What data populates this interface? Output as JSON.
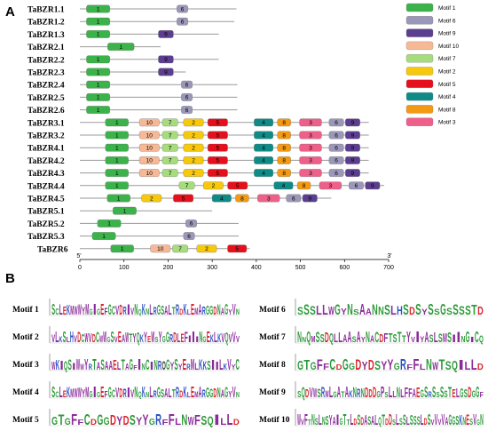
{
  "panel_labels": {
    "a": "A",
    "b": "B"
  },
  "axis": {
    "min": 0,
    "max": 700,
    "ticks": [
      0,
      100,
      200,
      300,
      400,
      500,
      600,
      700
    ],
    "end_left": "5'",
    "end_right": "3'"
  },
  "motif_colors": {
    "1": "#3bb34a",
    "2": "#f7c80c",
    "3": "#ee5f8a",
    "4": "#0e8b86",
    "5": "#e5101c",
    "6": "#9b97b8",
    "7": "#a6dc7c",
    "8": "#f49a12",
    "9": "#5b3e8f",
    "10": "#f7b995"
  },
  "legend": [
    {
      "motif": "1",
      "label": "Motif 1"
    },
    {
      "motif": "6",
      "label": "Motif 6"
    },
    {
      "motif": "9",
      "label": "Motif 9"
    },
    {
      "motif": "10",
      "label": "Motif 10"
    },
    {
      "motif": "7",
      "label": "Motif 7"
    },
    {
      "motif": "2",
      "label": "Motif 2"
    },
    {
      "motif": "5",
      "label": "Motif 5"
    },
    {
      "motif": "4",
      "label": "Motif 4"
    },
    {
      "motif": "8",
      "label": "Motif 8"
    },
    {
      "motif": "3",
      "label": "Motif 3"
    }
  ],
  "genes": [
    {
      "name": "TaBZR1.1",
      "length": 355,
      "motifs": [
        {
          "m": "1",
          "s": 15,
          "e": 68
        },
        {
          "m": "6",
          "s": 220,
          "e": 245
        }
      ]
    },
    {
      "name": "TaBZR1.2",
      "length": 350,
      "motifs": [
        {
          "m": "1",
          "s": 15,
          "e": 68
        },
        {
          "m": "6",
          "s": 220,
          "e": 245
        }
      ]
    },
    {
      "name": "TaBZR1.3",
      "length": 315,
      "motifs": [
        {
          "m": "1",
          "s": 15,
          "e": 68
        },
        {
          "m": "9",
          "s": 178,
          "e": 212
        }
      ]
    },
    {
      "name": "TaBZR2.1",
      "length": 183,
      "motifs": [
        {
          "m": "1",
          "s": 63,
          "e": 123
        }
      ]
    },
    {
      "name": "TaBZR2.2",
      "length": 315,
      "motifs": [
        {
          "m": "1",
          "s": 15,
          "e": 68
        },
        {
          "m": "9",
          "s": 178,
          "e": 212
        }
      ]
    },
    {
      "name": "TaBZR2.3",
      "length": 240,
      "motifs": [
        {
          "m": "1",
          "s": 15,
          "e": 68
        },
        {
          "m": "9",
          "s": 178,
          "e": 212
        }
      ]
    },
    {
      "name": "TaBZR2.4",
      "length": 357,
      "motifs": [
        {
          "m": "1",
          "s": 15,
          "e": 68
        },
        {
          "m": "6",
          "s": 230,
          "e": 255
        }
      ]
    },
    {
      "name": "TaBZR2.5",
      "length": 357,
      "motifs": [
        {
          "m": "1",
          "s": 15,
          "e": 68
        },
        {
          "m": "6",
          "s": 230,
          "e": 255
        }
      ]
    },
    {
      "name": "TaBZR2.6",
      "length": 357,
      "motifs": [
        {
          "m": "1",
          "s": 15,
          "e": 68
        },
        {
          "m": "6",
          "s": 230,
          "e": 255
        }
      ]
    },
    {
      "name": "TaBZR3.1",
      "length": 655,
      "motifs": [
        {
          "m": "1",
          "s": 58,
          "e": 110
        },
        {
          "m": "10",
          "s": 135,
          "e": 180
        },
        {
          "m": "7",
          "s": 187,
          "e": 222
        },
        {
          "m": "2",
          "s": 235,
          "e": 280
        },
        {
          "m": "5",
          "s": 290,
          "e": 335
        },
        {
          "m": "4",
          "s": 395,
          "e": 438
        },
        {
          "m": "8",
          "s": 448,
          "e": 478
        },
        {
          "m": "3",
          "s": 498,
          "e": 548
        },
        {
          "m": "6",
          "s": 565,
          "e": 598
        },
        {
          "m": "9",
          "s": 602,
          "e": 635
        }
      ]
    },
    {
      "name": "TaBZR3.2",
      "length": 655,
      "motifs": [
        {
          "m": "1",
          "s": 58,
          "e": 110
        },
        {
          "m": "10",
          "s": 135,
          "e": 180
        },
        {
          "m": "7",
          "s": 187,
          "e": 222
        },
        {
          "m": "2",
          "s": 235,
          "e": 280
        },
        {
          "m": "5",
          "s": 290,
          "e": 335
        },
        {
          "m": "4",
          "s": 395,
          "e": 438
        },
        {
          "m": "8",
          "s": 448,
          "e": 478
        },
        {
          "m": "3",
          "s": 498,
          "e": 548
        },
        {
          "m": "6",
          "s": 565,
          "e": 598
        },
        {
          "m": "9",
          "s": 602,
          "e": 635
        }
      ]
    },
    {
      "name": "TaBZR4.1",
      "length": 655,
      "motifs": [
        {
          "m": "1",
          "s": 58,
          "e": 110
        },
        {
          "m": "10",
          "s": 135,
          "e": 180
        },
        {
          "m": "7",
          "s": 187,
          "e": 222
        },
        {
          "m": "2",
          "s": 235,
          "e": 280
        },
        {
          "m": "5",
          "s": 290,
          "e": 335
        },
        {
          "m": "4",
          "s": 395,
          "e": 438
        },
        {
          "m": "8",
          "s": 448,
          "e": 478
        },
        {
          "m": "3",
          "s": 498,
          "e": 548
        },
        {
          "m": "6",
          "s": 565,
          "e": 598
        },
        {
          "m": "9",
          "s": 602,
          "e": 635
        }
      ]
    },
    {
      "name": "TaBZR4.2",
      "length": 655,
      "motifs": [
        {
          "m": "1",
          "s": 58,
          "e": 110
        },
        {
          "m": "10",
          "s": 135,
          "e": 180
        },
        {
          "m": "7",
          "s": 187,
          "e": 222
        },
        {
          "m": "2",
          "s": 235,
          "e": 280
        },
        {
          "m": "5",
          "s": 290,
          "e": 335
        },
        {
          "m": "4",
          "s": 395,
          "e": 438
        },
        {
          "m": "8",
          "s": 448,
          "e": 478
        },
        {
          "m": "3",
          "s": 498,
          "e": 548
        },
        {
          "m": "6",
          "s": 565,
          "e": 598
        },
        {
          "m": "9",
          "s": 602,
          "e": 635
        }
      ]
    },
    {
      "name": "TaBZR4.3",
      "length": 655,
      "motifs": [
        {
          "m": "1",
          "s": 58,
          "e": 110
        },
        {
          "m": "10",
          "s": 135,
          "e": 180
        },
        {
          "m": "7",
          "s": 187,
          "e": 222
        },
        {
          "m": "2",
          "s": 235,
          "e": 280
        },
        {
          "m": "5",
          "s": 290,
          "e": 335
        },
        {
          "m": "4",
          "s": 395,
          "e": 438
        },
        {
          "m": "8",
          "s": 448,
          "e": 478
        },
        {
          "m": "3",
          "s": 498,
          "e": 548
        },
        {
          "m": "6",
          "s": 565,
          "e": 598
        },
        {
          "m": "9",
          "s": 602,
          "e": 635
        }
      ]
    },
    {
      "name": "TaBZR4.4",
      "length": 690,
      "motifs": [
        {
          "m": "1",
          "s": 58,
          "e": 110
        },
        {
          "m": "7",
          "s": 225,
          "e": 260
        },
        {
          "m": "2",
          "s": 280,
          "e": 325
        },
        {
          "m": "5",
          "s": 335,
          "e": 380
        },
        {
          "m": "4",
          "s": 440,
          "e": 483
        },
        {
          "m": "8",
          "s": 493,
          "e": 523
        },
        {
          "m": "3",
          "s": 543,
          "e": 593
        },
        {
          "m": "6",
          "s": 610,
          "e": 643
        },
        {
          "m": "9",
          "s": 647,
          "e": 680
        }
      ]
    },
    {
      "name": "TaBZR4.5",
      "length": 570,
      "motifs": [
        {
          "m": "1",
          "s": 62,
          "e": 114
        },
        {
          "m": "2",
          "s": 140,
          "e": 185
        },
        {
          "m": "5",
          "s": 212,
          "e": 257
        },
        {
          "m": "4",
          "s": 300,
          "e": 343
        },
        {
          "m": "8",
          "s": 353,
          "e": 383
        },
        {
          "m": "3",
          "s": 403,
          "e": 453
        },
        {
          "m": "6",
          "s": 468,
          "e": 501
        },
        {
          "m": "9",
          "s": 505,
          "e": 538
        }
      ]
    },
    {
      "name": "TaBZR5.1",
      "length": 300,
      "motifs": [
        {
          "m": "1",
          "s": 75,
          "e": 128
        }
      ]
    },
    {
      "name": "TaBZR5.2",
      "length": 360,
      "motifs": [
        {
          "m": "1",
          "s": 40,
          "e": 93
        },
        {
          "m": "6",
          "s": 240,
          "e": 265
        }
      ]
    },
    {
      "name": "TaBZR5.3",
      "length": 360,
      "motifs": [
        {
          "m": "1",
          "s": 28,
          "e": 81
        },
        {
          "m": "6",
          "s": 235,
          "e": 260
        }
      ]
    },
    {
      "name": "TaBZR6",
      "length": 385,
      "motifs": [
        {
          "m": "1",
          "s": 70,
          "e": 122
        },
        {
          "m": "10",
          "s": 160,
          "e": 205
        },
        {
          "m": "7",
          "s": 210,
          "e": 245
        },
        {
          "m": "2",
          "s": 265,
          "e": 310
        },
        {
          "m": "5",
          "s": 335,
          "e": 378
        }
      ]
    }
  ],
  "logos": [
    {
      "title": "Motif 1",
      "seq": "SCLEKMWWYMGIGEFGCVDRIVNQKNLRGSALTRDKLEMARGGDNAGYVN"
    },
    {
      "title": "Motif 2",
      "seq": "VLKSLHVDCWVDCWWGSVEAWTYQKYEWSYGGRDLEFIIINGEKLKVQVVV"
    },
    {
      "title": "Motif 3",
      "seq": "WKIQSIWWYRTASAAELTAGFINCINROGYSYERMLKKSIILKVYC"
    },
    {
      "title": "Motif 4",
      "seq": "SCLEKMWWYMGIGEFGCVDRIVNQKNLRGSALTRDKLEMARGGDNAGYVN"
    },
    {
      "title": "Motif 5",
      "seq": "GTGFFCDGGDYDSYYGRFFLNWFSQILLD"
    },
    {
      "title": "Motif 6",
      "seq": "SSSLLWGYNSAANNSLHSDSYSSGSSSSTD"
    },
    {
      "title": "Motif 7",
      "seq": "NNQMSSDQLLAASAYNACDFTSTTYVIYASLSMSIINGICQ"
    },
    {
      "title": "Motif 8",
      "seq": "GTGFFCDGGDYDSYYGRFFLNWTSQILLD"
    },
    {
      "title": "Motif 9",
      "seq": "SQDVWSRWLGATAKNRNDDDGPSLLNLFFAEGSRSSSSTELGSDGGF"
    },
    {
      "title": "Motif 10",
      "seq": "WVFTNSLNSYAIGTTLDSDASALQTDDSLSSLSSSLDSVVVVAGGSKNESVGN"
    }
  ]
}
